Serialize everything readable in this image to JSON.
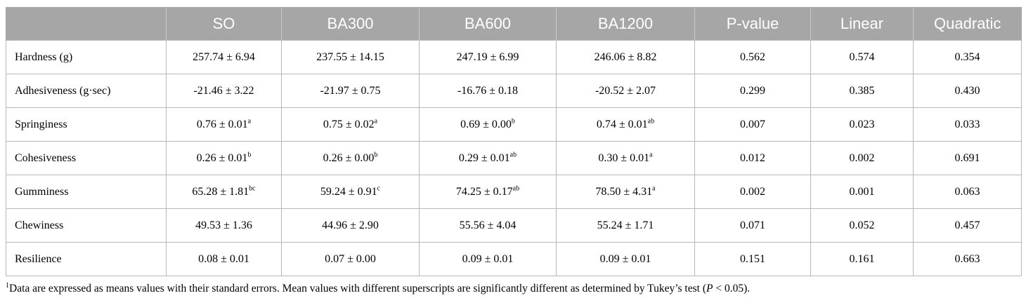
{
  "table": {
    "headers": [
      "",
      "SO",
      "BA300",
      "BA600",
      "BA1200",
      "P-value",
      "Linear",
      "Quadratic"
    ],
    "rows": [
      {
        "label": "Hardness (g)",
        "cells": [
          {
            "v": "257.74 ± 6.94",
            "s": ""
          },
          {
            "v": "237.55 ± 14.15",
            "s": ""
          },
          {
            "v": "247.19 ± 6.99",
            "s": ""
          },
          {
            "v": "246.06 ± 8.82",
            "s": ""
          },
          {
            "v": "0.562",
            "s": ""
          },
          {
            "v": "0.574",
            "s": ""
          },
          {
            "v": "0.354",
            "s": ""
          }
        ]
      },
      {
        "label": "Adhesiveness (g·sec)",
        "cells": [
          {
            "v": "-21.46 ± 3.22",
            "s": ""
          },
          {
            "v": "-21.97 ± 0.75",
            "s": ""
          },
          {
            "v": "-16.76 ± 0.18",
            "s": ""
          },
          {
            "v": "-20.52 ± 2.07",
            "s": ""
          },
          {
            "v": "0.299",
            "s": ""
          },
          {
            "v": "0.385",
            "s": ""
          },
          {
            "v": "0.430",
            "s": ""
          }
        ]
      },
      {
        "label": "Springiness",
        "cells": [
          {
            "v": "0.76 ± 0.01",
            "s": "a"
          },
          {
            "v": "0.75 ± 0.02",
            "s": "a"
          },
          {
            "v": "0.69 ± 0.00",
            "s": "b"
          },
          {
            "v": "0.74 ± 0.01",
            "s": "ab"
          },
          {
            "v": "0.007",
            "s": ""
          },
          {
            "v": "0.023",
            "s": ""
          },
          {
            "v": "0.033",
            "s": ""
          }
        ]
      },
      {
        "label": "Cohesiveness",
        "cells": [
          {
            "v": "0.26 ± 0.01",
            "s": "b"
          },
          {
            "v": "0.26 ± 0.00",
            "s": "b"
          },
          {
            "v": "0.29 ± 0.01",
            "s": "ab"
          },
          {
            "v": "0.30 ± 0.01",
            "s": "a"
          },
          {
            "v": "0.012",
            "s": ""
          },
          {
            "v": "0.002",
            "s": ""
          },
          {
            "v": "0.691",
            "s": ""
          }
        ]
      },
      {
        "label": "Gumminess",
        "cells": [
          {
            "v": "65.28 ± 1.81",
            "s": "bc"
          },
          {
            "v": "59.24 ± 0.91",
            "s": "c"
          },
          {
            "v": "74.25 ± 0.17",
            "s": "ab"
          },
          {
            "v": "78.50 ± 4.31",
            "s": "a"
          },
          {
            "v": "0.002",
            "s": ""
          },
          {
            "v": "0.001",
            "s": ""
          },
          {
            "v": "0.063",
            "s": ""
          }
        ]
      },
      {
        "label": "Chewiness",
        "cells": [
          {
            "v": "49.53 ± 1.36",
            "s": ""
          },
          {
            "v": "44.96 ± 2.90",
            "s": ""
          },
          {
            "v": "55.56 ± 4.04",
            "s": ""
          },
          {
            "v": "55.24 ± 1.71",
            "s": ""
          },
          {
            "v": "0.071",
            "s": ""
          },
          {
            "v": "0.052",
            "s": ""
          },
          {
            "v": "0.457",
            "s": ""
          }
        ]
      },
      {
        "label": "Resilience",
        "cells": [
          {
            "v": "0.08 ± 0.01",
            "s": ""
          },
          {
            "v": "0.07 ± 0.00",
            "s": ""
          },
          {
            "v": "0.09 ± 0.01",
            "s": ""
          },
          {
            "v": "0.09 ± 0.01",
            "s": ""
          },
          {
            "v": "0.151",
            "s": ""
          },
          {
            "v": "0.161",
            "s": ""
          },
          {
            "v": "0.663",
            "s": ""
          }
        ]
      }
    ]
  },
  "footnote": {
    "marker": "1",
    "text_before": "Data are expressed as means values with their standard errors. Mean values with different superscripts are significantly different as determined by Tukey’s test (",
    "p_symbol": "P",
    "text_after": " < 0.05)."
  }
}
